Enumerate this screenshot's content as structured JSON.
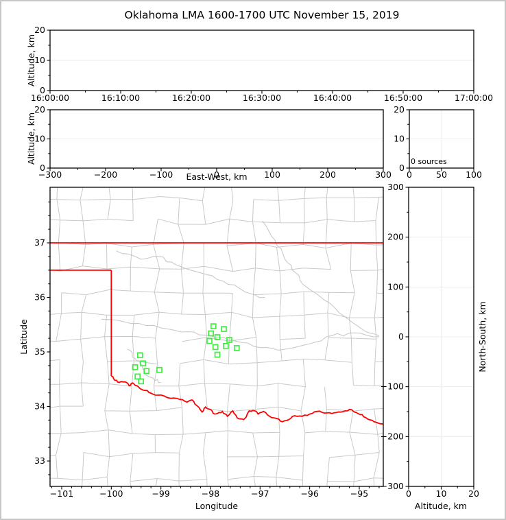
{
  "title": "Oklahoma LMA 1600-1700 UTC November 15, 2019",
  "colors": {
    "state_boundary": "#ff0000",
    "county_lines": "#c9c9c9",
    "river_lines": "#c9c9c9",
    "marker_green": "#3df03d",
    "gridline": "#ececec",
    "axis": "#000000",
    "figure_border": "#c6c6c6"
  },
  "panels": {
    "time_height": {
      "ylabel": "Altitude, km",
      "yticks": [
        "0",
        "10",
        "20"
      ],
      "xticks": [
        "16:00:00",
        "16:10:00",
        "16:20:00",
        "16:30:00",
        "16:40:00",
        "16:50:00",
        "17:00:00"
      ]
    },
    "ew_height": {
      "ylabel": "Altitude, km",
      "xlabel": "East-West, km",
      "yticks": [
        "0",
        "10",
        "20"
      ],
      "xticks": [
        "−300",
        "−200",
        "−100",
        "0",
        "100",
        "200",
        "300"
      ]
    },
    "source_histogram": {
      "yticks": [
        "0",
        "10",
        "20"
      ],
      "xticks": [
        "0",
        "50",
        "100"
      ],
      "annotation": "0 sources"
    },
    "plan_view": {
      "xlabel": "Longitude",
      "ylabel": "Latitude",
      "xticks": [
        "−101",
        "−100",
        "−99",
        "−98",
        "−97",
        "−96",
        "−95"
      ],
      "yticks": [
        "33",
        "34",
        "35",
        "36",
        "37"
      ]
    },
    "ns_height": {
      "xlabel": "Altitude, km",
      "ylabel_right": "North-South, km",
      "xticks": [
        "0",
        "10",
        "20"
      ],
      "yticks": [
        "300",
        "200",
        "100",
        "0",
        "−100",
        "−200",
        "−300"
      ]
    }
  },
  "chart_data": {
    "type": "scatter",
    "title": "Oklahoma LMA 1600-1700 UTC November 15, 2019",
    "panels": [
      {
        "id": "time_height",
        "type": "scatter",
        "position": "top",
        "xlabel": "",
        "ylabel": "Altitude, km",
        "xlim": [
          "16:00:00",
          "17:00:00"
        ],
        "ylim": [
          0,
          20
        ],
        "xtick_values": [
          "16:00:00",
          "16:10:00",
          "16:20:00",
          "16:30:00",
          "16:40:00",
          "16:50:00",
          "17:00:00"
        ],
        "ytick_values": [
          0,
          10,
          20
        ],
        "points": []
      },
      {
        "id": "ew_height",
        "type": "scatter",
        "position": "middle-left",
        "xlabel": "East-West, km",
        "ylabel": "Altitude, km",
        "xlim": [
          -300,
          300
        ],
        "ylim": [
          0,
          20
        ],
        "xtick_values": [
          -300,
          -200,
          -100,
          0,
          100,
          200,
          300
        ],
        "ytick_values": [
          0,
          10,
          20
        ],
        "points": []
      },
      {
        "id": "source_histogram",
        "type": "bar",
        "position": "middle-right",
        "xlim": [
          0,
          100
        ],
        "ylim": [
          0,
          20
        ],
        "xtick_values": [
          0,
          50,
          100
        ],
        "ytick_values": [
          0,
          10,
          20
        ],
        "annotation": "0 sources",
        "values": []
      },
      {
        "id": "plan_view",
        "type": "scatter",
        "position": "main",
        "xlabel": "Longitude",
        "ylabel": "Latitude",
        "xlim": [
          -101.24,
          -94.52
        ],
        "ylim": [
          32.53,
          38.02
        ],
        "xtick_values": [
          -101,
          -100,
          -99,
          -98,
          -97,
          -96,
          -95
        ],
        "ytick_values": [
          33,
          34,
          35,
          36,
          37
        ],
        "marker_style": "open-square",
        "marker_color": "#3df03d",
        "markers_lon_lat": [
          [
            -99.42,
            34.94
          ],
          [
            -99.36,
            34.79
          ],
          [
            -99.52,
            34.72
          ],
          [
            -99.29,
            34.65
          ],
          [
            -99.03,
            34.67
          ],
          [
            -99.47,
            34.55
          ],
          [
            -99.4,
            34.46
          ],
          [
            -97.94,
            35.47
          ],
          [
            -97.73,
            35.42
          ],
          [
            -97.99,
            35.34
          ],
          [
            -97.86,
            35.27
          ],
          [
            -98.02,
            35.2
          ],
          [
            -97.62,
            35.22
          ],
          [
            -97.9,
            35.09
          ],
          [
            -97.69,
            35.11
          ],
          [
            -97.47,
            35.07
          ],
          [
            -97.86,
            34.95
          ]
        ],
        "state_boundary": {
          "color": "#ff0000",
          "north_border_lat": 37.0,
          "panhandle_south_lat": 36.5,
          "panhandle_east_lon": -100.0,
          "red_river_lon_lat": [
            [
              -100.0,
              34.56
            ],
            [
              -99.93,
              34.48
            ],
            [
              -99.84,
              34.44
            ],
            [
              -99.72,
              34.45
            ],
            [
              -99.64,
              34.38
            ],
            [
              -99.57,
              34.43
            ],
            [
              -99.48,
              34.38
            ],
            [
              -99.38,
              34.31
            ],
            [
              -99.27,
              34.29
            ],
            [
              -99.17,
              34.23
            ],
            [
              -99.0,
              34.21
            ],
            [
              -98.8,
              34.15
            ],
            [
              -98.62,
              34.13
            ],
            [
              -98.47,
              34.08
            ],
            [
              -98.37,
              34.12
            ],
            [
              -98.28,
              34.02
            ],
            [
              -98.17,
              33.9
            ],
            [
              -98.1,
              33.99
            ],
            [
              -98.02,
              33.95
            ],
            [
              -97.95,
              33.88
            ],
            [
              -97.86,
              33.87
            ],
            [
              -97.76,
              33.91
            ],
            [
              -97.66,
              33.82
            ],
            [
              -97.55,
              33.92
            ],
            [
              -97.46,
              33.79
            ],
            [
              -97.33,
              33.76
            ],
            [
              -97.22,
              33.92
            ],
            [
              -97.11,
              33.92
            ],
            [
              -97.04,
              33.86
            ],
            [
              -96.93,
              33.91
            ],
            [
              -96.81,
              33.82
            ],
            [
              -96.67,
              33.78
            ],
            [
              -96.55,
              33.72
            ],
            [
              -96.42,
              33.76
            ],
            [
              -96.3,
              33.83
            ],
            [
              -96.15,
              33.82
            ],
            [
              -96.0,
              33.86
            ],
            [
              -95.85,
              33.91
            ],
            [
              -95.7,
              33.88
            ],
            [
              -95.55,
              33.87
            ],
            [
              -95.42,
              33.9
            ],
            [
              -95.28,
              33.92
            ],
            [
              -95.15,
              33.94
            ],
            [
              -95.06,
              33.89
            ],
            [
              -94.94,
              33.85
            ],
            [
              -94.83,
              33.77
            ],
            [
              -94.7,
              33.72
            ],
            [
              -94.52,
              33.68
            ]
          ]
        }
      },
      {
        "id": "ns_height",
        "type": "scatter",
        "position": "main-right",
        "xlabel": "Altitude, km",
        "ylabel": "North-South, km",
        "xlim": [
          0,
          20
        ],
        "ylim": [
          -300,
          300
        ],
        "xtick_values": [
          0,
          10,
          20
        ],
        "ytick_values": [
          300,
          200,
          100,
          0,
          -100,
          -200,
          -300
        ],
        "points": []
      }
    ],
    "source_count": 0
  }
}
